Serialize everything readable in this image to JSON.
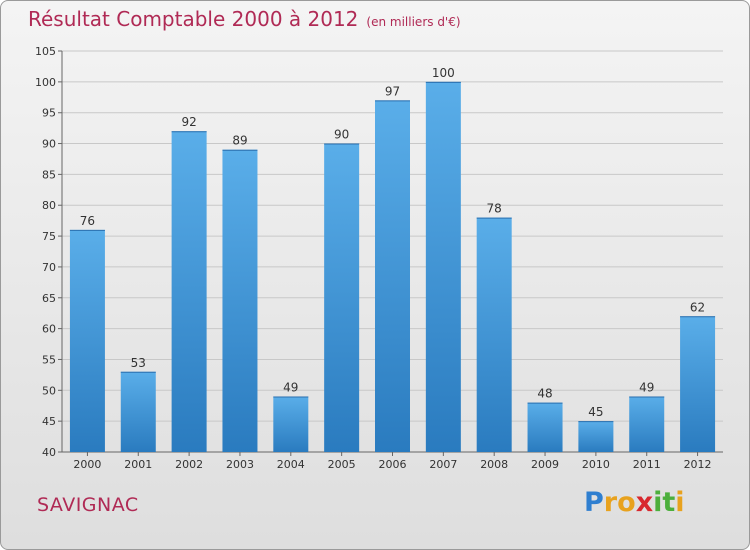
{
  "chart_data": {
    "type": "bar",
    "title": "Résultat Comptable 2000 à 2012",
    "subtitle": "(en milliers d'€)",
    "categories": [
      "2000",
      "2001",
      "2002",
      "2003",
      "2004",
      "2005",
      "2006",
      "2007",
      "2008",
      "2009",
      "2010",
      "2011",
      "2012"
    ],
    "values": [
      76,
      53,
      92,
      89,
      49,
      90,
      97,
      100,
      78,
      48,
      45,
      49,
      62
    ],
    "ylim": [
      40,
      105
    ],
    "yticks": [
      40,
      45,
      50,
      55,
      60,
      65,
      70,
      75,
      80,
      85,
      90,
      95,
      100,
      105
    ],
    "xlabel": "",
    "ylabel": "",
    "grid": true,
    "bar_color_top": "#5aaee9",
    "bar_color_bottom": "#2a7bbf"
  },
  "place_name": "SAVIGNAC",
  "logo": {
    "letters": [
      "P",
      "r",
      "o",
      "x",
      "i",
      "t",
      "i"
    ],
    "colors": [
      "#2f7fd0",
      "#e8a21e",
      "#e8a21e",
      "#d8282e",
      "#4caf3c",
      "#4caf3c",
      "#e8a21e"
    ]
  },
  "colors": {
    "accent": "#b02a55",
    "grid": "#c8c8c8"
  }
}
